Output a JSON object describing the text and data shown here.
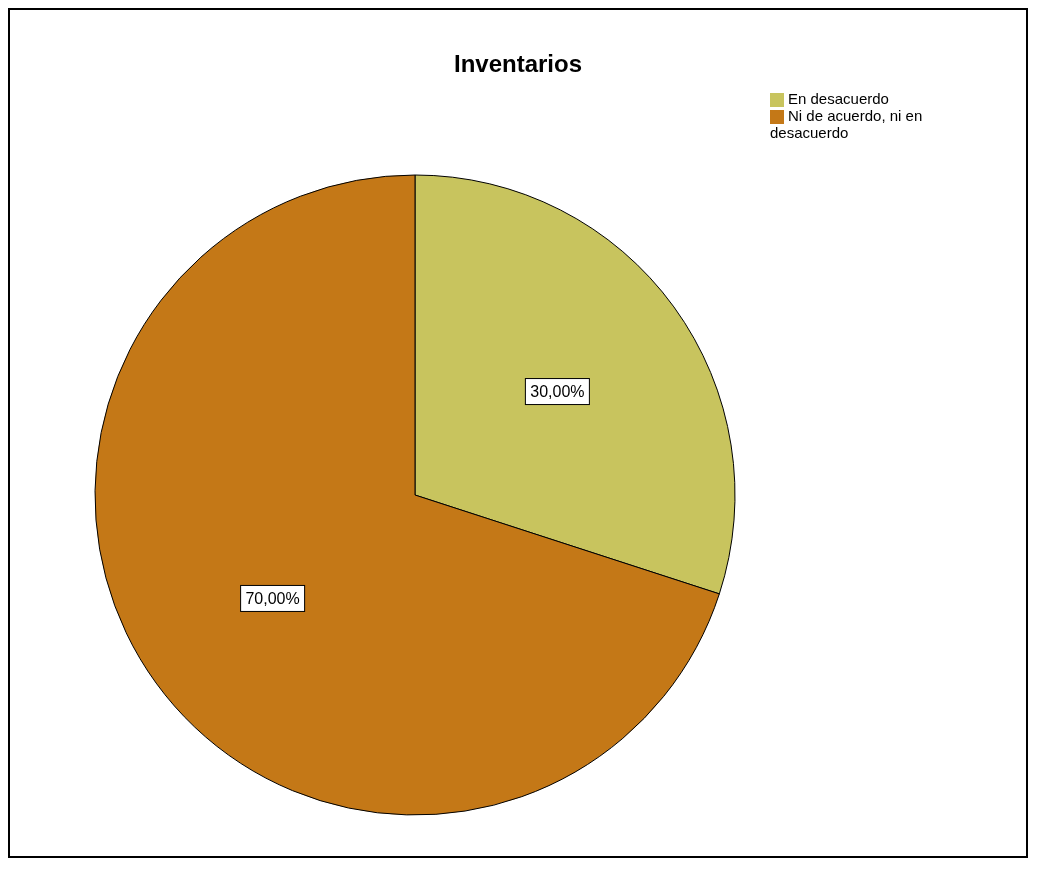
{
  "chart_data": {
    "type": "pie",
    "title": "Inventarios",
    "categories": [
      "En desacuerdo",
      "Ni de acuerdo, ni en desacuerdo"
    ],
    "values": [
      30,
      70
    ],
    "colors": [
      "#c8c45e",
      "#c47817"
    ],
    "value_labels": [
      "30,00%",
      "70,00%"
    ],
    "legend": "top right"
  }
}
